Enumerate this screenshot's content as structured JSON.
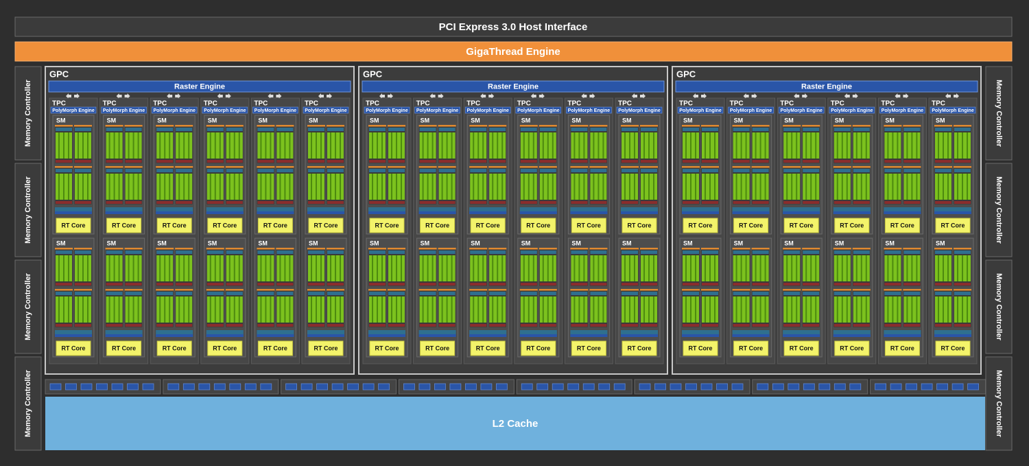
{
  "header": {
    "pcie": "PCI Express 3.0 Host Interface",
    "gigathread": "GigaThread Engine"
  },
  "memory_controllers": {
    "left": [
      "Memory Controller",
      "Memory Controller",
      "Memory Controller",
      "Memory Controller"
    ],
    "right": [
      "Memory Controller",
      "Memory Controller",
      "Memory Controller",
      "Memory Controller"
    ]
  },
  "gpcs": [
    {
      "label": "GPC",
      "raster_engine": "Raster Engine",
      "tpcs": [
        {
          "label": "TPC",
          "polymorph": "PolyMorph Engine",
          "sms": [
            {
              "label": "SM",
              "rt_core": "RT Core"
            },
            {
              "label": "SM",
              "rt_core": "RT Core"
            }
          ]
        },
        {
          "label": "TPC",
          "polymorph": "PolyMorph Engine",
          "sms": [
            {
              "label": "SM",
              "rt_core": "RT Core"
            },
            {
              "label": "SM",
              "rt_core": "RT Core"
            }
          ]
        },
        {
          "label": "TPC",
          "polymorph": "PolyMorph Engine",
          "sms": [
            {
              "label": "SM",
              "rt_core": "RT Core"
            },
            {
              "label": "SM",
              "rt_core": "RT Core"
            }
          ]
        },
        {
          "label": "TPC",
          "polymorph": "PolyMorph Engine",
          "sms": [
            {
              "label": "SM",
              "rt_core": "RT Core"
            },
            {
              "label": "SM",
              "rt_core": "RT Core"
            }
          ]
        },
        {
          "label": "TPC",
          "polymorph": "PolyMorph Engine",
          "sms": [
            {
              "label": "SM",
              "rt_core": "RT Core"
            },
            {
              "label": "SM",
              "rt_core": "RT Core"
            }
          ]
        },
        {
          "label": "TPC",
          "polymorph": "PolyMorph Engine",
          "sms": [
            {
              "label": "SM",
              "rt_core": "RT Core"
            },
            {
              "label": "SM",
              "rt_core": "RT Core"
            }
          ]
        }
      ]
    },
    {
      "label": "GPC",
      "raster_engine": "Raster Engine",
      "tpcs": [
        {
          "label": "TPC",
          "polymorph": "PolyMorph Engine",
          "sms": [
            {
              "label": "SM",
              "rt_core": "RT Core"
            },
            {
              "label": "SM",
              "rt_core": "RT Core"
            }
          ]
        },
        {
          "label": "TPC",
          "polymorph": "PolyMorph Engine",
          "sms": [
            {
              "label": "SM",
              "rt_core": "RT Core"
            },
            {
              "label": "SM",
              "rt_core": "RT Core"
            }
          ]
        },
        {
          "label": "TPC",
          "polymorph": "PolyMorph Engine",
          "sms": [
            {
              "label": "SM",
              "rt_core": "RT Core"
            },
            {
              "label": "SM",
              "rt_core": "RT Core"
            }
          ]
        },
        {
          "label": "TPC",
          "polymorph": "PolyMorph Engine",
          "sms": [
            {
              "label": "SM",
              "rt_core": "RT Core"
            },
            {
              "label": "SM",
              "rt_core": "RT Core"
            }
          ]
        },
        {
          "label": "TPC",
          "polymorph": "PolyMorph Engine",
          "sms": [
            {
              "label": "SM",
              "rt_core": "RT Core"
            },
            {
              "label": "SM",
              "rt_core": "RT Core"
            }
          ]
        },
        {
          "label": "TPC",
          "polymorph": "PolyMorph Engine",
          "sms": [
            {
              "label": "SM",
              "rt_core": "RT Core"
            },
            {
              "label": "SM",
              "rt_core": "RT Core"
            }
          ]
        }
      ]
    },
    {
      "label": "GPC",
      "raster_engine": "Raster Engine",
      "tpcs": [
        {
          "label": "TPC",
          "polymorph": "PolyMorph Engine",
          "sms": [
            {
              "label": "SM",
              "rt_core": "RT Core"
            },
            {
              "label": "SM",
              "rt_core": "RT Core"
            }
          ]
        },
        {
          "label": "TPC",
          "polymorph": "PolyMorph Engine",
          "sms": [
            {
              "label": "SM",
              "rt_core": "RT Core"
            },
            {
              "label": "SM",
              "rt_core": "RT Core"
            }
          ]
        },
        {
          "label": "TPC",
          "polymorph": "PolyMorph Engine",
          "sms": [
            {
              "label": "SM",
              "rt_core": "RT Core"
            },
            {
              "label": "SM",
              "rt_core": "RT Core"
            }
          ]
        },
        {
          "label": "TPC",
          "polymorph": "PolyMorph Engine",
          "sms": [
            {
              "label": "SM",
              "rt_core": "RT Core"
            },
            {
              "label": "SM",
              "rt_core": "RT Core"
            }
          ]
        },
        {
          "label": "TPC",
          "polymorph": "PolyMorph Engine",
          "sms": [
            {
              "label": "SM",
              "rt_core": "RT Core"
            },
            {
              "label": "SM",
              "rt_core": "RT Core"
            }
          ]
        },
        {
          "label": "TPC",
          "polymorph": "PolyMorph Engine",
          "sms": [
            {
              "label": "SM",
              "rt_core": "RT Core"
            },
            {
              "label": "SM",
              "rt_core": "RT Core"
            }
          ]
        }
      ]
    }
  ],
  "l2_cache": "L2 Cache"
}
